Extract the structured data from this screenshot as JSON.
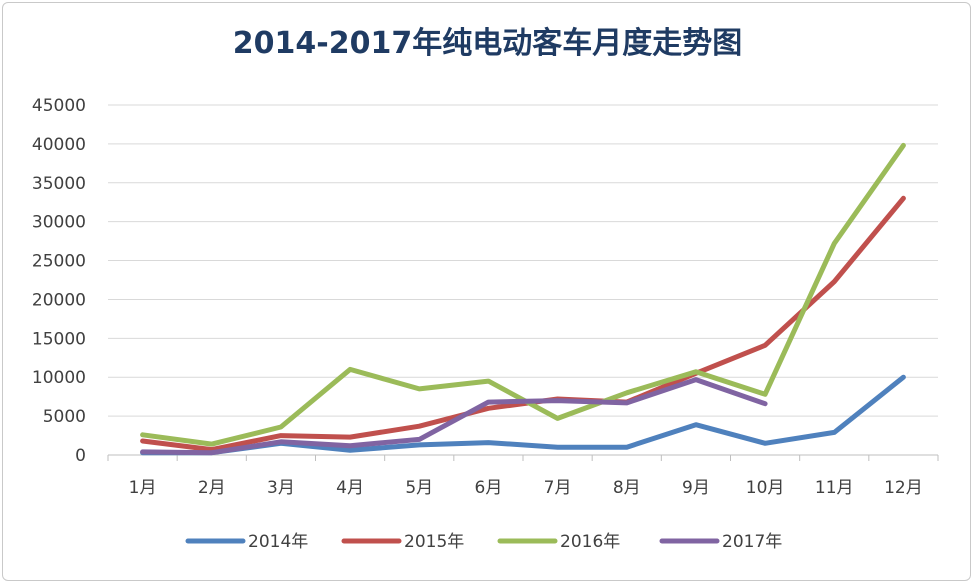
{
  "chart_data": {
    "type": "line",
    "title": "2014-2017年纯电动客车月度走势图",
    "xlabel": "",
    "ylabel": "",
    "categories": [
      "1月",
      "2月",
      "3月",
      "4月",
      "5月",
      "6月",
      "7月",
      "8月",
      "9月",
      "10月",
      "11月",
      "12月"
    ],
    "ylim": [
      0,
      45000
    ],
    "yticks": [
      0,
      5000,
      10000,
      15000,
      20000,
      25000,
      30000,
      35000,
      40000,
      45000
    ],
    "grid": true,
    "legend_position": "bottom",
    "series": [
      {
        "name": "2014年",
        "color": "#4f81bd",
        "values": [
          300,
          300,
          1500,
          600,
          1300,
          1600,
          1000,
          1000,
          3900,
          1500,
          2900,
          10000
        ]
      },
      {
        "name": "2015年",
        "color": "#c0504d",
        "values": [
          1800,
          700,
          2500,
          2300,
          3700,
          6000,
          7200,
          6800,
          10500,
          14100,
          22300,
          33000
        ]
      },
      {
        "name": "2016年",
        "color": "#9bbb59",
        "values": [
          2600,
          1400,
          3600,
          11000,
          8500,
          9500,
          4700,
          8000,
          10700,
          7800,
          27200,
          39800
        ]
      },
      {
        "name": "2017年",
        "color": "#8064a2",
        "values": [
          400,
          300,
          1700,
          1200,
          2000,
          6800,
          7000,
          6700,
          9700,
          6600,
          null,
          null
        ]
      }
    ]
  }
}
